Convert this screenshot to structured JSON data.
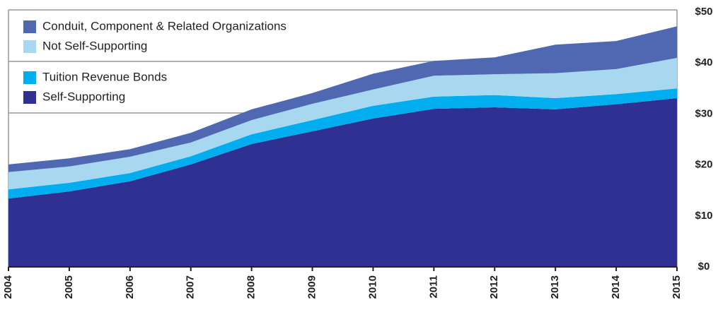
{
  "chart_data": {
    "type": "stacked-area",
    "categories": [
      "2004",
      "2005",
      "2006",
      "2007",
      "2008",
      "2009",
      "2010",
      "2011",
      "2012",
      "2013",
      "2014",
      "2015"
    ],
    "series": [
      {
        "name": "Self-Supporting",
        "color": "#2e3192",
        "values": [
          13.4,
          14.8,
          16.8,
          20.1,
          24.1,
          26.6,
          29.1,
          31.0,
          31.3,
          30.9,
          31.9,
          33.1
        ]
      },
      {
        "name": "Tuition Revenue Bonds",
        "color": "#00aeef",
        "values": [
          1.8,
          1.7,
          1.6,
          1.6,
          1.9,
          2.2,
          2.5,
          2.4,
          2.4,
          2.2,
          2.0,
          1.9
        ]
      },
      {
        "name": "Not Self-Supporting",
        "color": "#a8d8f0",
        "values": [
          3.4,
          3.2,
          3.2,
          2.7,
          2.8,
          3.2,
          3.2,
          4.1,
          4.1,
          4.9,
          4.9,
          6.0
        ]
      },
      {
        "name": "Conduit, Component & Related Organizations",
        "color": "#5067b1",
        "values": [
          1.5,
          1.6,
          1.5,
          1.9,
          2.1,
          2.1,
          3.1,
          2.9,
          3.3,
          5.6,
          5.5,
          6.2
        ]
      }
    ],
    "ylim": [
      0,
      50
    ],
    "yticks": [
      {
        "value": 0,
        "label": "$0"
      },
      {
        "value": 10,
        "label": "$10"
      },
      {
        "value": 20,
        "label": "$20"
      },
      {
        "value": 30,
        "label": "$30"
      },
      {
        "value": 40,
        "label": "$40"
      },
      {
        "value": 50,
        "label": "$50"
      }
    ]
  }
}
